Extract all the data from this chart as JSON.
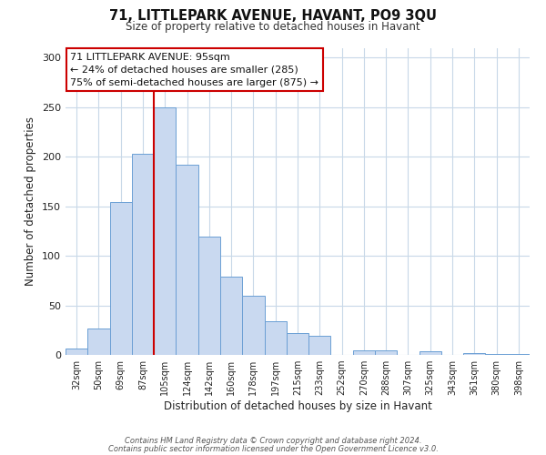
{
  "title": "71, LITTLEPARK AVENUE, HAVANT, PO9 3QU",
  "subtitle": "Size of property relative to detached houses in Havant",
  "xlabel": "Distribution of detached houses by size in Havant",
  "ylabel": "Number of detached properties",
  "categories": [
    "32sqm",
    "50sqm",
    "69sqm",
    "87sqm",
    "105sqm",
    "124sqm",
    "142sqm",
    "160sqm",
    "178sqm",
    "197sqm",
    "215sqm",
    "233sqm",
    "252sqm",
    "270sqm",
    "288sqm",
    "307sqm",
    "325sqm",
    "343sqm",
    "361sqm",
    "380sqm",
    "398sqm"
  ],
  "values": [
    6,
    27,
    154,
    203,
    250,
    192,
    119,
    79,
    60,
    34,
    22,
    19,
    0,
    5,
    5,
    0,
    4,
    0,
    2,
    1,
    1
  ],
  "bar_color": "#c9d9f0",
  "bar_edge_color": "#6b9fd4",
  "vline_color": "#cc0000",
  "vline_x": 3.5,
  "ylim": [
    0,
    310
  ],
  "yticks": [
    0,
    50,
    100,
    150,
    200,
    250,
    300
  ],
  "annotation_title": "71 LITTLEPARK AVENUE: 95sqm",
  "annotation_line1": "← 24% of detached houses are smaller (285)",
  "annotation_line2": "75% of semi-detached houses are larger (875) →",
  "annotation_box_color": "#ffffff",
  "annotation_box_edge": "#cc0000",
  "footer1": "Contains HM Land Registry data © Crown copyright and database right 2024.",
  "footer2": "Contains public sector information licensed under the Open Government Licence v3.0.",
  "background_color": "#ffffff",
  "grid_color": "#c8d8e8"
}
